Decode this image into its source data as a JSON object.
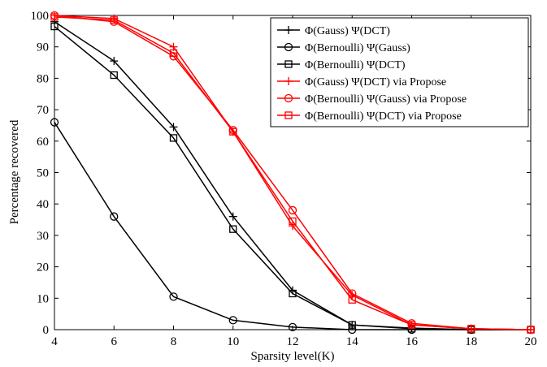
{
  "chart_data": {
    "type": "line",
    "title": "",
    "xlabel": "Sparsity level(K)",
    "ylabel": "Percentage recovered",
    "xlim": [
      4,
      20
    ],
    "ylim": [
      0,
      100
    ],
    "x_ticks": [
      4,
      6,
      8,
      10,
      12,
      14,
      16,
      18,
      20
    ],
    "y_ticks": [
      0,
      10,
      20,
      30,
      40,
      50,
      60,
      70,
      80,
      90,
      100
    ],
    "grid": false,
    "legend_position": "top-right",
    "x": [
      4,
      6,
      8,
      10,
      12,
      14,
      16,
      18,
      20
    ],
    "series": [
      {
        "name": "Φ(Gauss) Ψ(DCT)",
        "color": "#000000",
        "marker": "plus",
        "values": [
          98,
          85.5,
          64.5,
          36,
          12.5,
          1.5,
          0.5,
          0,
          0
        ]
      },
      {
        "name": "Φ(Bernoulli) Ψ(Gauss)",
        "color": "#000000",
        "marker": "circle",
        "values": [
          66,
          36,
          10.5,
          3,
          0.8,
          0,
          0,
          0,
          0
        ]
      },
      {
        "name": "Φ(Bernoulli) Ψ(DCT)",
        "color": "#000000",
        "marker": "square",
        "values": [
          96.5,
          81,
          61,
          32,
          11.5,
          1.5,
          0.3,
          0,
          0
        ]
      },
      {
        "name": "Φ(Gauss) Ψ(DCT) via Propose",
        "color": "#ff0000",
        "marker": "plus",
        "values": [
          100,
          99,
          90,
          63,
          33,
          11,
          1.5,
          0.3,
          0
        ]
      },
      {
        "name": "Φ(Bernoulli) Ψ(Gauss) via Propose",
        "color": "#ff0000",
        "marker": "circle",
        "values": [
          100,
          98,
          87,
          63.5,
          38,
          11.5,
          2,
          0.3,
          0
        ]
      },
      {
        "name": "Φ(Bernoulli) Ψ(DCT) via Propose",
        "color": "#ff0000",
        "marker": "square",
        "values": [
          99.5,
          98.5,
          88,
          63,
          34.5,
          9.5,
          1.5,
          0.3,
          0
        ]
      }
    ]
  }
}
